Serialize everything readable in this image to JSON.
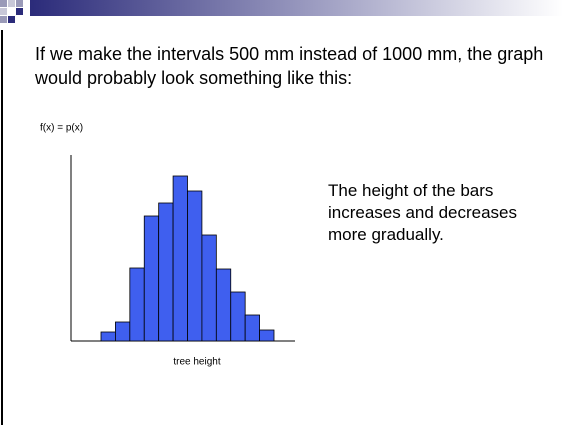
{
  "slide": {
    "intro": "If we make the intervals 500 mm instead of 1000 mm, the graph would probably look something like this:",
    "side_note": "The height of the bars increases and decreases more gradually."
  },
  "chart_data": {
    "type": "bar",
    "y_label": "f(x) = p(x)",
    "x_label": "tree height",
    "categories": [
      null,
      null,
      null,
      null,
      null,
      null,
      null,
      null,
      null,
      null,
      null,
      null
    ],
    "values": [
      9,
      19,
      73,
      125,
      138,
      165,
      150,
      106,
      72,
      49,
      26,
      11
    ],
    "color": "#3f5fef",
    "ylim": [
      0,
      186
    ]
  }
}
